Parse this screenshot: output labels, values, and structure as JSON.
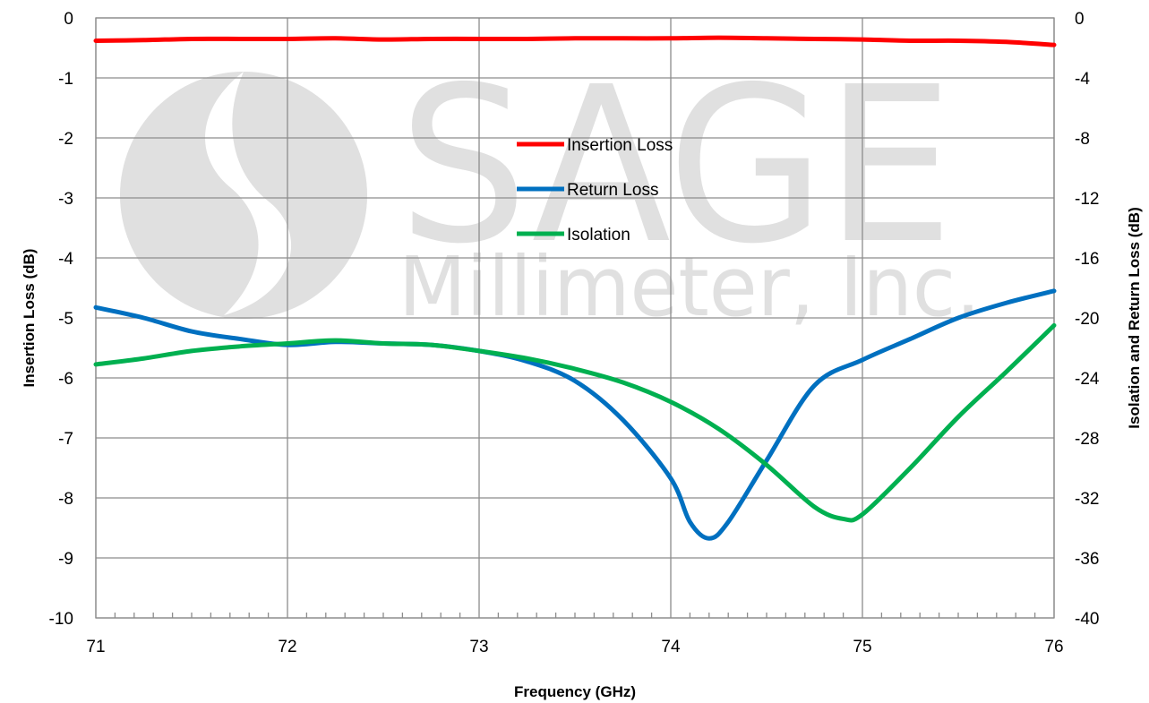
{
  "chart_data": {
    "type": "line",
    "title": "",
    "xlabel": "Frequency (GHz)",
    "ylabel_left": "Insertion Loss (dB)",
    "ylabel_right": "Isolation and Return Loss (dB)",
    "xlim": [
      71,
      76
    ],
    "ylim_left": [
      -10,
      0
    ],
    "ylim_right": [
      -40,
      0
    ],
    "x_ticks": [
      "71",
      "72",
      "73",
      "74",
      "75",
      "76"
    ],
    "y_left_ticks": [
      "0",
      "-1",
      "-2",
      "-3",
      "-4",
      "-5",
      "-6",
      "-7",
      "-8",
      "-9",
      "-10"
    ],
    "y_right_ticks": [
      "0",
      "-4",
      "-8",
      "-12",
      "-16",
      "-20",
      "-24",
      "-28",
      "-32",
      "-36",
      "-40"
    ],
    "grid": true,
    "legend_position": "center",
    "watermark": {
      "line1": "SAGE",
      "line2": "Millimeter, Inc."
    },
    "series": [
      {
        "name": "Insertion Loss",
        "axis": "left",
        "color": "#ff0000",
        "x": [
          71.0,
          71.25,
          71.5,
          71.75,
          72.0,
          72.25,
          72.5,
          72.75,
          73.0,
          73.25,
          73.5,
          73.75,
          74.0,
          74.25,
          74.5,
          74.75,
          75.0,
          75.25,
          75.5,
          75.75,
          76.0
        ],
        "y": [
          -0.38,
          -0.37,
          -0.35,
          -0.35,
          -0.35,
          -0.34,
          -0.36,
          -0.35,
          -0.35,
          -0.35,
          -0.34,
          -0.34,
          -0.34,
          -0.33,
          -0.34,
          -0.35,
          -0.36,
          -0.38,
          -0.38,
          -0.4,
          -0.45
        ]
      },
      {
        "name": "Return Loss",
        "axis": "right",
        "color": "#0070c0",
        "x": [
          71.0,
          71.25,
          71.5,
          71.75,
          72.0,
          72.25,
          72.5,
          72.75,
          73.0,
          73.25,
          73.5,
          73.75,
          74.0,
          74.1,
          74.2,
          74.3,
          74.5,
          74.75,
          75.0,
          75.25,
          75.5,
          75.75,
          76.0
        ],
        "y": [
          -19.3,
          -20.0,
          -20.9,
          -21.4,
          -21.8,
          -21.6,
          -21.7,
          -21.8,
          -22.2,
          -22.9,
          -24.2,
          -26.8,
          -30.7,
          -33.6,
          -34.7,
          -33.6,
          -29.5,
          -24.5,
          -22.8,
          -21.4,
          -20.0,
          -19.0,
          -18.2
        ]
      },
      {
        "name": "Isolation",
        "axis": "right",
        "color": "#00b050",
        "x": [
          71.0,
          71.25,
          71.5,
          71.75,
          72.0,
          72.25,
          72.5,
          72.75,
          73.0,
          73.25,
          73.5,
          73.75,
          74.0,
          74.25,
          74.5,
          74.75,
          74.9,
          75.0,
          75.25,
          75.5,
          75.75,
          76.0
        ],
        "y": [
          -23.1,
          -22.7,
          -22.2,
          -21.9,
          -21.7,
          -21.5,
          -21.7,
          -21.8,
          -22.2,
          -22.7,
          -23.4,
          -24.3,
          -25.6,
          -27.4,
          -29.8,
          -32.6,
          -33.4,
          -33.1,
          -30.0,
          -26.6,
          -23.6,
          -20.5
        ]
      }
    ]
  }
}
